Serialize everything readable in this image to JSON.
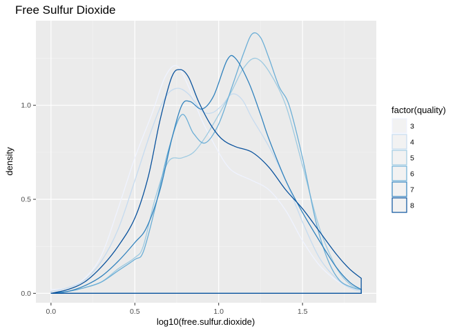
{
  "chart_data": {
    "type": "line",
    "title": "Free Sulfur Dioxide",
    "xlabel": "log10(free.sulfur.dioxide)",
    "ylabel": "density",
    "xlim": [
      -0.09,
      1.94
    ],
    "ylim": [
      -0.05,
      1.45
    ],
    "x_ticks": [
      0.0,
      0.5,
      1.0,
      1.5
    ],
    "x_tick_labels": [
      "0.0",
      "0.5",
      "1.0",
      "1.5"
    ],
    "y_ticks": [
      0.0,
      0.5,
      1.0
    ],
    "y_tick_labels": [
      "0.0",
      "0.5",
      "1.0"
    ],
    "grid": true,
    "legend": {
      "title": "factor(quality)",
      "position": "right"
    },
    "series": [
      {
        "name": "3",
        "color": "#eff3ff",
        "points": [
          [
            0,
            0.02
          ],
          [
            0.1,
            0.03
          ],
          [
            0.2,
            0.08
          ],
          [
            0.3,
            0.2
          ],
          [
            0.4,
            0.45
          ],
          [
            0.5,
            0.72
          ],
          [
            0.6,
            0.95
          ],
          [
            0.68,
            1.15
          ],
          [
            0.75,
            1.21
          ],
          [
            0.82,
            1.1
          ],
          [
            0.9,
            0.92
          ],
          [
            1.0,
            0.75
          ],
          [
            1.05,
            0.68
          ],
          [
            1.1,
            0.64
          ],
          [
            1.2,
            0.6
          ],
          [
            1.3,
            0.55
          ],
          [
            1.4,
            0.44
          ],
          [
            1.5,
            0.28
          ],
          [
            1.6,
            0.15
          ],
          [
            1.7,
            0.07
          ],
          [
            1.78,
            0.03
          ],
          [
            1.85,
            0.01
          ]
        ]
      },
      {
        "name": "4",
        "color": "#c6dbef",
        "points": [
          [
            0,
            0.01
          ],
          [
            0.1,
            0.03
          ],
          [
            0.2,
            0.07
          ],
          [
            0.3,
            0.17
          ],
          [
            0.4,
            0.34
          ],
          [
            0.5,
            0.6
          ],
          [
            0.6,
            0.87
          ],
          [
            0.68,
            1.04
          ],
          [
            0.75,
            1.09
          ],
          [
            0.82,
            1.06
          ],
          [
            0.9,
            0.97
          ],
          [
            0.96,
            0.96
          ],
          [
            1.02,
            1.0
          ],
          [
            1.08,
            1.06
          ],
          [
            1.14,
            1.03
          ],
          [
            1.2,
            0.93
          ],
          [
            1.3,
            0.78
          ],
          [
            1.4,
            0.6
          ],
          [
            1.5,
            0.38
          ],
          [
            1.6,
            0.19
          ],
          [
            1.7,
            0.08
          ],
          [
            1.78,
            0.03
          ],
          [
            1.85,
            0.01
          ]
        ]
      },
      {
        "name": "5",
        "color": "#9ecae1",
        "points": [
          [
            0,
            0.0
          ],
          [
            0.1,
            0.01
          ],
          [
            0.2,
            0.03
          ],
          [
            0.3,
            0.06
          ],
          [
            0.4,
            0.13
          ],
          [
            0.5,
            0.19
          ],
          [
            0.55,
            0.25
          ],
          [
            0.62,
            0.5
          ],
          [
            0.7,
            0.7
          ],
          [
            0.78,
            0.72
          ],
          [
            0.85,
            0.75
          ],
          [
            0.92,
            0.83
          ],
          [
            1.0,
            0.95
          ],
          [
            1.08,
            1.08
          ],
          [
            1.15,
            1.2
          ],
          [
            1.22,
            1.25
          ],
          [
            1.3,
            1.18
          ],
          [
            1.4,
            1.0
          ],
          [
            1.5,
            0.68
          ],
          [
            1.6,
            0.35
          ],
          [
            1.7,
            0.14
          ],
          [
            1.78,
            0.05
          ],
          [
            1.85,
            0.02
          ]
        ]
      },
      {
        "name": "6",
        "color": "#6baed6",
        "points": [
          [
            0,
            0.0
          ],
          [
            0.1,
            0.01
          ],
          [
            0.2,
            0.03
          ],
          [
            0.3,
            0.06
          ],
          [
            0.4,
            0.12
          ],
          [
            0.5,
            0.18
          ],
          [
            0.55,
            0.22
          ],
          [
            0.62,
            0.45
          ],
          [
            0.7,
            0.76
          ],
          [
            0.78,
            0.95
          ],
          [
            0.85,
            0.85
          ],
          [
            0.92,
            0.8
          ],
          [
            1.0,
            0.9
          ],
          [
            1.08,
            1.1
          ],
          [
            1.15,
            1.28
          ],
          [
            1.2,
            1.38
          ],
          [
            1.25,
            1.36
          ],
          [
            1.3,
            1.25
          ],
          [
            1.36,
            1.1
          ],
          [
            1.42,
            1.0
          ],
          [
            1.5,
            0.72
          ],
          [
            1.58,
            0.38
          ],
          [
            1.65,
            0.18
          ],
          [
            1.72,
            0.07
          ],
          [
            1.8,
            0.03
          ],
          [
            1.85,
            0.02
          ]
        ]
      },
      {
        "name": "7",
        "color": "#3182bd",
        "points": [
          [
            0,
            0.0
          ],
          [
            0.1,
            0.01
          ],
          [
            0.2,
            0.04
          ],
          [
            0.3,
            0.09
          ],
          [
            0.4,
            0.17
          ],
          [
            0.5,
            0.27
          ],
          [
            0.57,
            0.35
          ],
          [
            0.65,
            0.55
          ],
          [
            0.72,
            0.82
          ],
          [
            0.78,
            1.0
          ],
          [
            0.83,
            1.02
          ],
          [
            0.9,
            0.98
          ],
          [
            0.97,
            1.05
          ],
          [
            1.05,
            1.24
          ],
          [
            1.1,
            1.25
          ],
          [
            1.18,
            1.12
          ],
          [
            1.25,
            0.95
          ],
          [
            1.3,
            0.82
          ],
          [
            1.4,
            0.6
          ],
          [
            1.5,
            0.43
          ],
          [
            1.6,
            0.28
          ],
          [
            1.7,
            0.14
          ],
          [
            1.78,
            0.06
          ],
          [
            1.85,
            0.02
          ]
        ]
      },
      {
        "name": "8",
        "color": "#08519c",
        "points": [
          [
            0,
            0.0
          ],
          [
            0.1,
            0.02
          ],
          [
            0.2,
            0.06
          ],
          [
            0.3,
            0.14
          ],
          [
            0.4,
            0.25
          ],
          [
            0.5,
            0.4
          ],
          [
            0.58,
            0.62
          ],
          [
            0.65,
            0.92
          ],
          [
            0.72,
            1.15
          ],
          [
            0.77,
            1.19
          ],
          [
            0.82,
            1.15
          ],
          [
            0.88,
            1.02
          ],
          [
            0.95,
            0.9
          ],
          [
            1.02,
            0.82
          ],
          [
            1.1,
            0.78
          ],
          [
            1.2,
            0.75
          ],
          [
            1.3,
            0.67
          ],
          [
            1.4,
            0.55
          ],
          [
            1.5,
            0.45
          ],
          [
            1.6,
            0.33
          ],
          [
            1.7,
            0.21
          ],
          [
            1.78,
            0.13
          ],
          [
            1.85,
            0.08
          ]
        ]
      }
    ]
  }
}
